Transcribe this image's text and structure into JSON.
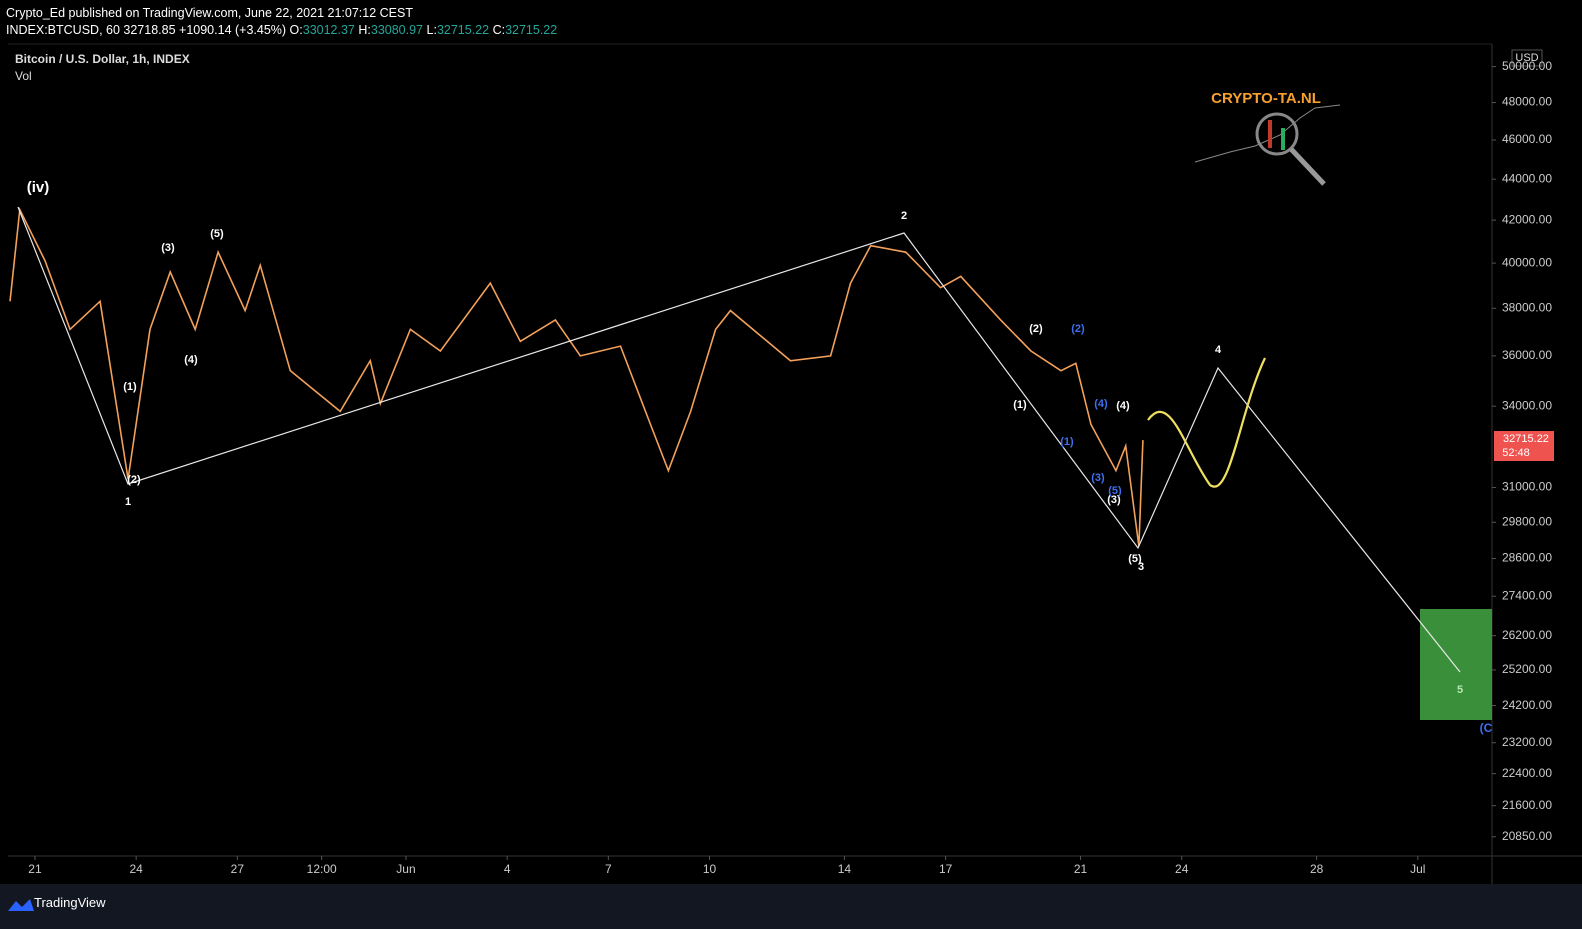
{
  "header": {
    "publisher": "Crypto_Ed published on TradingView.com, June 22, 2021 21:07:12 CEST",
    "symbol": "INDEX:BTCUSD, 60",
    "price": "32718.85",
    "change": "+1090.14 (+3.45%)",
    "o_label": "O:",
    "open": "33012.37",
    "h_label": "H:",
    "high": "33080.97",
    "l_label": "L:",
    "low": "32715.22",
    "c_label": "C:",
    "close": "32715.22"
  },
  "chart_data": {
    "type": "line",
    "volume_label": "Vol",
    "currency": "USD",
    "last_price": "32715.22",
    "countdown": "52:48",
    "logo": "CRYPTO-TA.NL",
    "log_scale": true,
    "grid": false,
    "x": [
      -0.74,
      -0.45,
      0.3,
      1.04,
      1.93,
      2.76,
      3.41,
      4.01,
      4.75,
      5.43,
      6.23,
      6.68,
      7.57,
      9.05,
      9.94,
      10.24,
      11.13,
      12.02,
      13.5,
      14.39,
      15.43,
      16.17,
      17.36,
      18.25,
      18.78,
      19.44,
      20.18,
      20.62,
      22.4,
      23.59,
      24.18,
      24.78,
      25.82,
      26.85,
      27.45,
      28.63,
      29.53,
      30.42,
      30.86,
      31.31,
      32.05,
      32.34,
      32.73,
      32.85
    ],
    "series": [
      {
        "name": "Bitcoin / U.S. Dollar, 1h, INDEX",
        "color": "#f2a05a",
        "values": [
          38300,
          42500,
          40100,
          37100,
          38300,
          31300,
          37100,
          39600,
          37100,
          40500,
          37900,
          39900,
          35400,
          33800,
          35800,
          34100,
          37100,
          36200,
          39100,
          36600,
          37500,
          36000,
          36400,
          33300,
          31600,
          33800,
          37100,
          37900,
          35800,
          36000,
          39100,
          40800,
          40500,
          38900,
          39400,
          37500,
          36200,
          35400,
          35700,
          33300,
          31600,
          32500,
          29000,
          32715
        ]
      }
    ],
    "xlim": [
      -0.8,
      43.2
    ],
    "xticks": [
      {
        "value": 0,
        "label": "21"
      },
      {
        "value": 3,
        "label": "24"
      },
      {
        "value": 6,
        "label": "27"
      },
      {
        "value": 8.5,
        "label": "12:00"
      },
      {
        "value": 11,
        "label": "Jun"
      },
      {
        "value": 14,
        "label": "4"
      },
      {
        "value": 17,
        "label": "7"
      },
      {
        "value": 20,
        "label": "10"
      },
      {
        "value": 24,
        "label": "14"
      },
      {
        "value": 27,
        "label": "17"
      },
      {
        "value": 31,
        "label": "21"
      },
      {
        "value": 34,
        "label": "24"
      },
      {
        "value": 38,
        "label": "28"
      },
      {
        "value": 41,
        "label": "Jul"
      }
    ],
    "ylim": [
      20400,
      51300
    ],
    "yticks": [
      {
        "value": 50000,
        "label": "50000.00"
      },
      {
        "value": 48000,
        "label": "48000.00"
      },
      {
        "value": 46000,
        "label": "46000.00"
      },
      {
        "value": 44000,
        "label": "44000.00"
      },
      {
        "value": 42000,
        "label": "42000.00"
      },
      {
        "value": 40000,
        "label": "40000.00"
      },
      {
        "value": 38000,
        "label": "38000.00"
      },
      {
        "value": 36000,
        "label": "36000.00"
      },
      {
        "value": 34000,
        "label": "34000.00"
      },
      {
        "value": 31000,
        "label": "31000.00"
      },
      {
        "value": 29800,
        "label": "29800.00"
      },
      {
        "value": 28600,
        "label": "28600.00"
      },
      {
        "value": 27400,
        "label": "27400.00"
      },
      {
        "value": 26200,
        "label": "26200.00"
      },
      {
        "value": 25200,
        "label": "25200.00"
      },
      {
        "value": 24200,
        "label": "24200.00"
      },
      {
        "value": 23200,
        "label": "23200.00"
      },
      {
        "value": 22400,
        "label": "22400.00"
      },
      {
        "value": 21600,
        "label": "21600.00"
      },
      {
        "value": 20850,
        "label": "20850.00"
      }
    ],
    "annotations": [
      {
        "text": "(iv)",
        "color": "#ffffff"
      },
      {
        "text": "1",
        "color": "#ffffff"
      },
      {
        "text": "(2)",
        "color": "#ffffff"
      },
      {
        "text": "(1)",
        "color": "#ffffff"
      },
      {
        "text": "(3)",
        "color": "#ffffff"
      },
      {
        "text": "(4)",
        "color": "#ffffff"
      },
      {
        "text": "(5)",
        "color": "#ffffff"
      },
      {
        "text": "2",
        "color": "#ffffff"
      },
      {
        "text": "(1)",
        "color": "#ffffff"
      },
      {
        "text": "(2)",
        "color": "#ffffff"
      },
      {
        "text": "(3)",
        "color": "#ffffff"
      },
      {
        "text": "(4)",
        "color": "#ffffff"
      },
      {
        "text": "(5)",
        "color": "#ffffff"
      },
      {
        "text": "3",
        "color": "#ffffff"
      },
      {
        "text": "4",
        "color": "#ffffff"
      },
      {
        "text": "5",
        "color": "#b9e6b0"
      },
      {
        "text": "(1)",
        "color": "#3f6ff0"
      },
      {
        "text": "(2)",
        "color": "#3f6ff0"
      },
      {
        "text": "(3)",
        "color": "#3f6ff0"
      },
      {
        "text": "(4)",
        "color": "#3f6ff0"
      },
      {
        "text": "(5)",
        "color": "#3f6ff0"
      },
      {
        "text": "(C",
        "color": "#3f6ff0"
      }
    ]
  },
  "footer": {
    "brand": "TradingView"
  }
}
